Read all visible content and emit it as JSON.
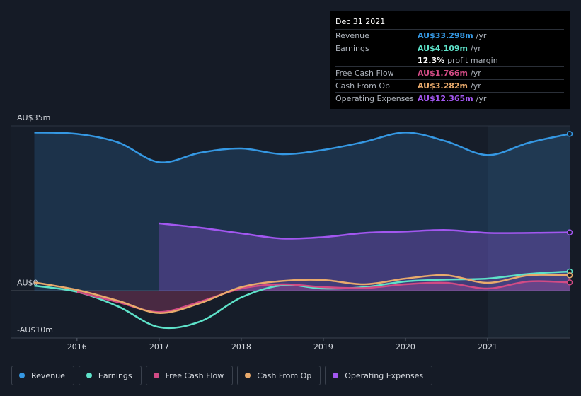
{
  "chart_data": {
    "type": "line",
    "x": [
      2015.48,
      2016,
      2016.5,
      2017,
      2017.5,
      2018,
      2018.5,
      2019,
      2019.5,
      2020,
      2020.5,
      2021,
      2021.5,
      2022
    ],
    "series": [
      {
        "name": "Revenue",
        "color": "#3598e3",
        "area": true,
        "values": [
          33.6,
          33.3,
          31.5,
          27.3,
          29.3,
          30.2,
          29.0,
          29.9,
          31.6,
          33.6,
          31.7,
          28.8,
          31.4,
          33.3
        ]
      },
      {
        "name": "Earnings",
        "color": "#5ee2c9",
        "area": false,
        "values": [
          1.1,
          -0.2,
          -3.3,
          -7.7,
          -6.5,
          -1.4,
          1.2,
          0.5,
          0.8,
          2.0,
          2.4,
          2.6,
          3.6,
          4.1
        ]
      },
      {
        "name": "Free Cash Flow",
        "color": "#d24b85",
        "area": true,
        "values": [
          null,
          -0.2,
          -2.4,
          -4.5,
          -2.3,
          0.5,
          1.4,
          0.8,
          0.6,
          1.4,
          1.7,
          0.5,
          2.0,
          1.8
        ]
      },
      {
        "name": "Cash From Op",
        "color": "#e9aa6c",
        "area": false,
        "values": [
          1.8,
          0.2,
          -2.1,
          -4.7,
          -2.6,
          0.8,
          2.1,
          2.3,
          1.4,
          2.6,
          3.3,
          1.7,
          3.3,
          3.3
        ]
      },
      {
        "name": "Operating Expenses",
        "color": "#a257f0",
        "area": true,
        "values": [
          null,
          null,
          null,
          14.3,
          13.4,
          12.2,
          11.1,
          11.4,
          12.3,
          12.6,
          12.9,
          12.3,
          12.3,
          12.4
        ]
      }
    ],
    "xlim": [
      2015.2,
      2022.0
    ],
    "xticks": [
      2016,
      2017,
      2018,
      2019,
      2020,
      2021
    ],
    "ylim": [
      -10,
      35
    ],
    "yticks": [
      {
        "value": 35,
        "label": "AU$35m"
      },
      {
        "value": 0,
        "label": "AU$0"
      },
      {
        "value": -10,
        "label": "-AU$10m"
      }
    ],
    "grid": true
  },
  "tooltip": {
    "date": "Dec 31 2021",
    "rows": [
      {
        "label": "Revenue",
        "value": "AU$33.298m",
        "unit": "/yr"
      },
      {
        "label": "Earnings",
        "value": "AU$4.109m",
        "unit": "/yr"
      },
      {
        "label": "Free Cash Flow",
        "value": "AU$1.766m",
        "unit": "/yr"
      },
      {
        "label": "Cash From Op",
        "value": "AU$3.282m",
        "unit": "/yr"
      },
      {
        "label": "Operating Expenses",
        "value": "AU$12.365m",
        "unit": "/yr"
      }
    ],
    "margin": {
      "value": "12.3%",
      "text": "profit margin"
    }
  }
}
